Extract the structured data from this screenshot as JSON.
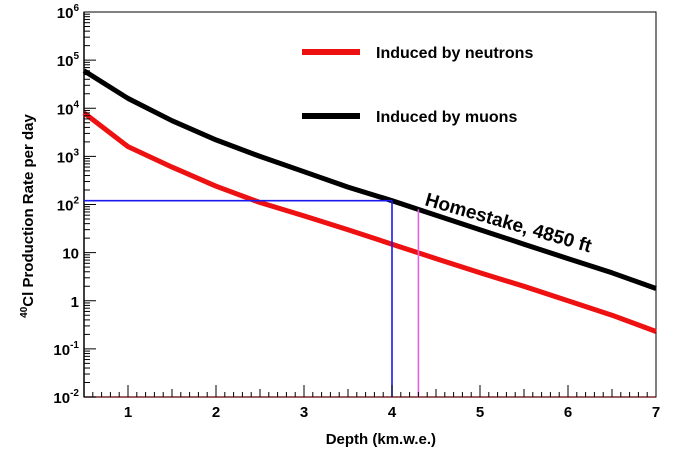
{
  "chart_data": {
    "type": "line",
    "xlabel": "Depth (km.w.e.)",
    "ylabel": {
      "superscript": "40",
      "text": "Cl Production Rate per day"
    },
    "xlim": [
      0.5,
      7
    ],
    "ylim": [
      0.01,
      1000000
    ],
    "y_scale": "log",
    "grid": false,
    "legend_position": "top-right",
    "x_ticks": [
      "1",
      "2",
      "3",
      "4",
      "5",
      "6",
      "7"
    ],
    "y_ticks": [
      {
        "value": 0.01,
        "base": "10",
        "exp": "-2"
      },
      {
        "value": 0.1,
        "base": "10",
        "exp": "-1"
      },
      {
        "value": 1,
        "base": "1",
        "exp": ""
      },
      {
        "value": 10,
        "base": "10",
        "exp": ""
      },
      {
        "value": 100,
        "base": "10",
        "exp": "2"
      },
      {
        "value": 1000,
        "base": "10",
        "exp": "3"
      },
      {
        "value": 10000,
        "base": "10",
        "exp": "4"
      },
      {
        "value": 100000,
        "base": "10",
        "exp": "5"
      },
      {
        "value": 1000000,
        "base": "10",
        "exp": "6"
      }
    ],
    "series": [
      {
        "name": "Induced by neutrons",
        "color": "#ee1111",
        "x": [
          0.5,
          1.0,
          1.5,
          2.0,
          2.5,
          3.0,
          3.5,
          4.0,
          4.5,
          5.0,
          5.5,
          6.0,
          6.5,
          7.0
        ],
        "y": [
          8000,
          1600,
          600,
          240,
          110,
          58,
          30,
          15,
          7.5,
          3.8,
          2.0,
          1.0,
          0.5,
          0.23
        ]
      },
      {
        "name": "Induced by muons",
        "color": "#000000",
        "x": [
          0.5,
          1.0,
          1.5,
          2.0,
          2.5,
          3.0,
          3.5,
          4.0,
          4.5,
          5.0,
          5.5,
          6.0,
          6.5,
          7.0
        ],
        "y": [
          60000,
          16000,
          5500,
          2200,
          1000,
          480,
          230,
          120,
          60,
          30,
          15,
          7.5,
          3.8,
          1.8
        ]
      }
    ],
    "reference_lines": [
      {
        "color": "#1a1aee",
        "x": 4.0,
        "y": 120
      },
      {
        "color": "#e066e6",
        "x": 4.3
      }
    ],
    "annotations": [
      {
        "text": "Homestake, 4850 ft",
        "x": 4.35,
        "y": 110
      }
    ]
  }
}
